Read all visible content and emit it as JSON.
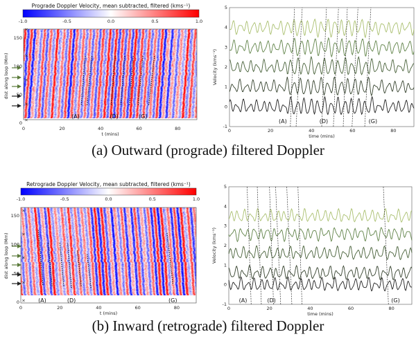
{
  "captions": {
    "a": "(a)  Outward (prograde) filtered Doppler",
    "b": "(b)  Inward (retrograde) filtered Doppler"
  },
  "colors": {
    "negative": "#0000ff",
    "zero": "#ffffff",
    "positive": "#ff0000",
    "traces": [
      "#1e1e1e",
      "#34412c",
      "#465f37",
      "#5f8247",
      "#a9bf6e"
    ],
    "arrow_green": "#5a7a3a",
    "arrow_dark": "#222222"
  },
  "chart_data": [
    {
      "id": "prograde-map",
      "type": "heatmap",
      "colorbar_title": "Prograde Doppler Velocity, mean subtracted, filtered (kms⁻¹)",
      "colorbar_ticks": [
        "-1.0",
        "-0.5",
        "0.0",
        "0.5",
        "1.0"
      ],
      "colorbar_range": [
        -1,
        1
      ],
      "xlabel": "t (mins)",
      "ylabel": "dist along loop (Mm)",
      "xlim": [
        0,
        90
      ],
      "ylim": [
        0,
        160
      ],
      "xticks": [
        "0",
        "20",
        "40",
        "60",
        "80"
      ],
      "yticks": [
        "0",
        "50",
        "100",
        "150"
      ],
      "stripe_direction": "outward",
      "marked_tracks": [
        [
          30,
          32,
          32,
          120
        ],
        [
          33,
          32,
          35.5,
          120
        ],
        [
          45.5,
          32,
          47.5,
          120
        ],
        [
          50.5,
          32,
          52.5,
          120
        ],
        [
          55,
          32,
          57,
          120
        ],
        [
          59.5,
          32,
          62,
          120
        ],
        [
          65,
          32,
          68,
          120
        ]
      ],
      "annotations": [
        {
          "text": "(A)",
          "t": 27
        },
        {
          "text": "(D)",
          "t": 47
        },
        {
          "text": "(G)",
          "t": 62
        }
      ]
    },
    {
      "id": "prograde-traces",
      "type": "line",
      "xlabel": "time (mins)",
      "ylabel": "Velocity (kms⁻¹)",
      "xlim": [
        0,
        90
      ],
      "ylim": [
        -1,
        5
      ],
      "xticks": [
        "0",
        "20",
        "40",
        "60",
        "80"
      ],
      "yticks": [
        "-1",
        "0",
        "1",
        "2",
        "3",
        "4",
        "5"
      ],
      "series_offsets": [
        0,
        1,
        2,
        3,
        4
      ],
      "dashed_lines": [
        [
          29.7,
          31.7
        ],
        [
          32.5,
          35.5
        ],
        [
          45,
          47.3
        ],
        [
          50.7,
          53.2
        ],
        [
          55.5,
          57.5
        ],
        [
          59.8,
          62.7
        ],
        [
          66,
          69
        ]
      ],
      "annotations": [
        {
          "text": "(A)",
          "t": 26
        },
        {
          "text": "(D)",
          "t": 46
        },
        {
          "text": "(G)",
          "t": 70
        }
      ]
    },
    {
      "id": "retrograde-map",
      "type": "heatmap",
      "colorbar_title": "Retrograde Doppler Velocity, mean subtracted, filtered (kms⁻¹)",
      "colorbar_ticks": [
        "-1.0",
        "-0.5",
        "0.0",
        "0.5",
        "1.0"
      ],
      "colorbar_range": [
        -1,
        1
      ],
      "xlabel": "t (mins)",
      "ylabel": "dist along loop (Mm)",
      "xlim": [
        0,
        90
      ],
      "ylim": [
        0,
        150
      ],
      "xticks": [
        "0",
        "20",
        "40",
        "60",
        "80"
      ],
      "yticks": [
        "0",
        "50",
        "100",
        "150"
      ],
      "stripe_direction": "inward",
      "marked_tracks": [
        [
          11.3,
          30,
          9,
          125
        ],
        [
          16,
          28,
          14,
          105
        ],
        [
          22,
          28,
          20,
          105
        ],
        [
          26,
          25,
          24,
          103
        ],
        [
          31,
          28,
          29,
          90
        ],
        [
          36,
          25,
          34,
          85
        ],
        [
          78,
          32,
          75,
          122
        ]
      ],
      "annotations": [
        {
          "text": "(A)",
          "t": 11
        },
        {
          "text": "(D)",
          "t": 26
        },
        {
          "text": "(G)",
          "t": 78
        }
      ]
    },
    {
      "id": "retrograde-traces",
      "type": "line",
      "xlabel": "time (mins)",
      "ylabel": "Velocity (kms⁻¹)",
      "xlim": [
        0,
        90
      ],
      "ylim": [
        -1,
        5
      ],
      "xticks": [
        "0",
        "20",
        "40",
        "60",
        "80"
      ],
      "yticks": [
        "-1",
        "0",
        "1",
        "2",
        "3",
        "4",
        "5"
      ],
      "series_offsets": [
        0,
        0.6,
        1.6,
        2.6,
        3.5
      ],
      "dashed_lines": [
        [
          11,
          9
        ],
        [
          16,
          14
        ],
        [
          22,
          20
        ],
        [
          25.5,
          23
        ],
        [
          31,
          28.5
        ],
        [
          36,
          34
        ],
        [
          78.5,
          76
        ]
      ],
      "annotations": [
        {
          "text": "(A)",
          "t": 7
        },
        {
          "text": "(D)",
          "t": 21
        },
        {
          "text": "(G)",
          "t": 82
        }
      ]
    }
  ]
}
